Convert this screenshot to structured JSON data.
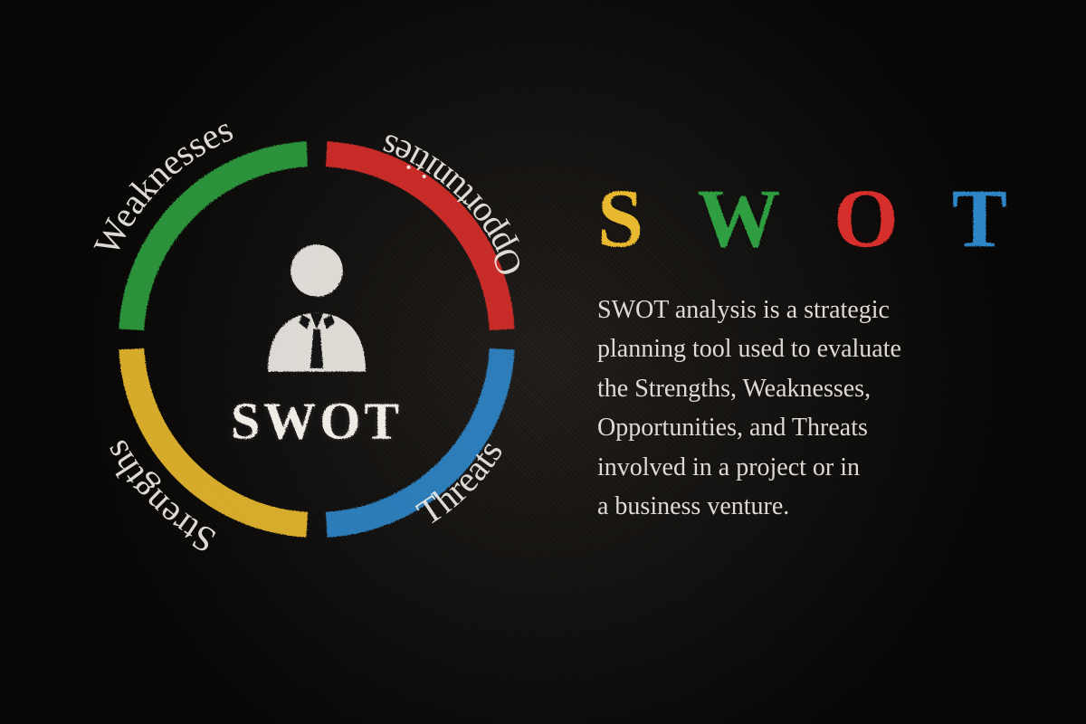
{
  "diagram": {
    "type": "infographic",
    "background_color": "#181512",
    "text_color": "#efece6",
    "ring": {
      "outer_radius": 205,
      "stroke_width": 28,
      "label_radius": 240,
      "gap_deg": 6,
      "segments": [
        {
          "key": "strengths",
          "label": "Strengths",
          "color": "#e8b92e",
          "start_deg": 183,
          "end_deg": 267
        },
        {
          "key": "weaknesses",
          "label": "Weaknesses",
          "color": "#2f9e3f",
          "start_deg": 273,
          "end_deg": 357
        },
        {
          "key": "opportunities",
          "label": "Opportunities",
          "color": "#d62f2b",
          "start_deg": 3,
          "end_deg": 87
        },
        {
          "key": "threats",
          "label": "Threats",
          "color": "#2e86c7",
          "start_deg": 93,
          "end_deg": 177
        }
      ],
      "center_label": "SWOT",
      "center_label_fontsize": 58,
      "label_fontsize": 40
    },
    "title": {
      "letters": [
        {
          "char": "S",
          "color": "#e8b92e"
        },
        {
          "char": "W",
          "color": "#2f9e3f"
        },
        {
          "char": "O",
          "color": "#d62f2b"
        },
        {
          "char": "T",
          "color": "#2e86c7"
        }
      ],
      "fontsize": 92,
      "letter_spacing": 18
    },
    "description": "SWOT analysis is a strategic\nplanning tool used to evaluate\nthe Strengths, Weaknesses,\nOpportunities, and Threats\ninvolved in a project or in\na business venture.",
    "description_fontsize": 28
  }
}
